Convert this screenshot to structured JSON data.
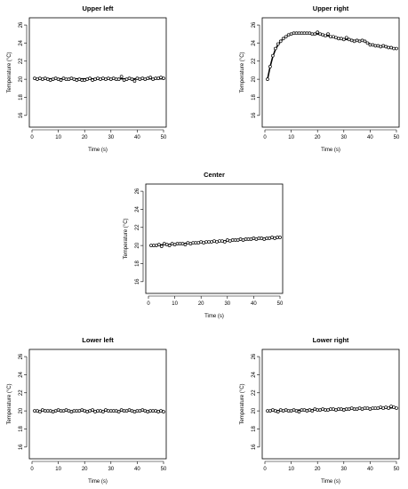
{
  "chart_data": [
    {
      "type": "scatter",
      "title": "Upper left",
      "xlabel": "Time (s)",
      "ylabel": "Temperature (°C)",
      "xlim": [
        0,
        50
      ],
      "ylim": [
        15,
        26.5
      ],
      "xticks": [
        0,
        10,
        20,
        30,
        40,
        50
      ],
      "yticks": [
        16,
        18,
        20,
        22,
        24,
        26
      ],
      "grid": false,
      "series": [
        {
          "x": [
            1,
            2,
            3,
            4,
            5,
            6,
            7,
            8,
            9,
            10,
            11,
            12,
            13,
            14,
            15,
            16,
            17,
            18,
            19,
            20,
            21,
            22,
            23,
            24,
            25,
            26,
            27,
            28,
            29,
            30,
            31,
            32,
            33,
            34,
            35,
            36,
            37,
            38,
            39,
            40,
            41,
            42,
            43,
            44,
            45,
            46,
            47,
            48,
            49,
            50
          ],
          "y": [
            20.1,
            20.0,
            20.1,
            20.0,
            20.1,
            20.0,
            19.9,
            20.0,
            20.1,
            20.0,
            19.9,
            20.1,
            20.0,
            20.0,
            20.1,
            20.0,
            19.9,
            20.0,
            19.9,
            19.9,
            20.0,
            20.1,
            19.9,
            20.0,
            20.1,
            20.0,
            20.1,
            20.0,
            20.1,
            20.0,
            20.1,
            20.0,
            20.0,
            20.3,
            19.9,
            20.0,
            20.1,
            20.0,
            19.8,
            20.1,
            20.0,
            20.1,
            20.0,
            20.1,
            20.2,
            20.0,
            20.1,
            20.1,
            20.2,
            20.1
          ],
          "fit": [
            [
              1,
              20.05
            ],
            [
              50,
              20.05
            ]
          ]
        }
      ]
    },
    {
      "type": "scatter",
      "title": "Upper right",
      "xlabel": "Time (s)",
      "ylabel": "Temperature (°C)",
      "xlim": [
        0,
        50
      ],
      "ylim": [
        15,
        26.5
      ],
      "xticks": [
        0,
        10,
        20,
        30,
        40,
        50
      ],
      "yticks": [
        16,
        18,
        20,
        22,
        24,
        26
      ],
      "grid": false,
      "series": [
        {
          "x": [
            1,
            2,
            3,
            4,
            5,
            6,
            7,
            8,
            9,
            10,
            11,
            12,
            13,
            14,
            15,
            16,
            17,
            18,
            19,
            20,
            21,
            22,
            23,
            24,
            25,
            26,
            27,
            28,
            29,
            30,
            31,
            32,
            33,
            34,
            35,
            36,
            37,
            38,
            39,
            40,
            41,
            42,
            43,
            44,
            45,
            46,
            47,
            48,
            49,
            50
          ],
          "y": [
            20.0,
            21.4,
            22.6,
            23.4,
            23.9,
            24.2,
            24.5,
            24.7,
            24.9,
            25.0,
            25.1,
            25.1,
            25.1,
            25.1,
            25.1,
            25.1,
            25.1,
            25.0,
            25.0,
            25.2,
            25.0,
            24.9,
            24.8,
            25.0,
            24.7,
            24.7,
            24.6,
            24.5,
            24.5,
            24.4,
            24.6,
            24.4,
            24.3,
            24.2,
            24.3,
            24.2,
            24.3,
            24.2,
            24.0,
            23.8,
            23.8,
            23.7,
            23.7,
            23.6,
            23.7,
            23.6,
            23.5,
            23.5,
            23.4,
            23.4
          ],
          "fit": [
            [
              1,
              20.0
            ],
            [
              2,
              21.4
            ],
            [
              3,
              22.5
            ],
            [
              4,
              23.3
            ],
            [
              5,
              23.8
            ],
            [
              6,
              24.2
            ],
            [
              7,
              24.5
            ],
            [
              8,
              24.7
            ],
            [
              9,
              24.9
            ],
            [
              10,
              25.0
            ],
            [
              12,
              25.1
            ],
            [
              14,
              25.1
            ],
            [
              16,
              25.1
            ],
            [
              18,
              25.0
            ],
            [
              20,
              25.0
            ],
            [
              22,
              24.9
            ],
            [
              24,
              24.8
            ],
            [
              26,
              24.7
            ],
            [
              28,
              24.5
            ],
            [
              30,
              24.4
            ],
            [
              32,
              24.4
            ],
            [
              34,
              24.3
            ],
            [
              36,
              24.3
            ],
            [
              38,
              24.2
            ],
            [
              40,
              23.9
            ],
            [
              42,
              23.7
            ],
            [
              44,
              23.6
            ],
            [
              46,
              23.6
            ],
            [
              48,
              23.5
            ],
            [
              50,
              23.4
            ]
          ]
        }
      ]
    },
    {
      "type": "scatter",
      "title": "Center",
      "xlabel": "Time (s)",
      "ylabel": "Temperature (°C)",
      "xlim": [
        0,
        50
      ],
      "ylim": [
        15,
        26.5
      ],
      "xticks": [
        0,
        10,
        20,
        30,
        40,
        50
      ],
      "yticks": [
        16,
        18,
        20,
        22,
        24,
        26
      ],
      "grid": false,
      "series": [
        {
          "x": [
            1,
            2,
            3,
            4,
            5,
            6,
            7,
            8,
            9,
            10,
            11,
            12,
            13,
            14,
            15,
            16,
            17,
            18,
            19,
            20,
            21,
            22,
            23,
            24,
            25,
            26,
            27,
            28,
            29,
            30,
            31,
            32,
            33,
            34,
            35,
            36,
            37,
            38,
            39,
            40,
            41,
            42,
            43,
            44,
            45,
            46,
            47,
            48,
            49,
            50
          ],
          "y": [
            20.0,
            20.0,
            20.0,
            20.1,
            19.9,
            20.2,
            20.1,
            20.0,
            20.2,
            20.1,
            20.2,
            20.2,
            20.2,
            20.1,
            20.3,
            20.2,
            20.3,
            20.3,
            20.3,
            20.4,
            20.3,
            20.4,
            20.4,
            20.4,
            20.5,
            20.4,
            20.5,
            20.5,
            20.4,
            20.6,
            20.5,
            20.6,
            20.6,
            20.6,
            20.7,
            20.6,
            20.7,
            20.7,
            20.7,
            20.8,
            20.7,
            20.8,
            20.8,
            20.7,
            20.8,
            20.8,
            20.9,
            20.8,
            20.9,
            20.9
          ],
          "fit": [
            [
              1,
              20.0
            ],
            [
              50,
              20.9
            ]
          ]
        }
      ]
    },
    {
      "type": "scatter",
      "title": "Lower left",
      "xlabel": "Time (s)",
      "ylabel": "Temperature (°C)",
      "xlim": [
        0,
        50
      ],
      "ylim": [
        15,
        26.5
      ],
      "xticks": [
        0,
        10,
        20,
        30,
        40,
        50
      ],
      "yticks": [
        16,
        18,
        20,
        22,
        24,
        26
      ],
      "grid": false,
      "series": [
        {
          "x": [
            1,
            2,
            3,
            4,
            5,
            6,
            7,
            8,
            9,
            10,
            11,
            12,
            13,
            14,
            15,
            16,
            17,
            18,
            19,
            20,
            21,
            22,
            23,
            24,
            25,
            26,
            27,
            28,
            29,
            30,
            31,
            32,
            33,
            34,
            35,
            36,
            37,
            38,
            39,
            40,
            41,
            42,
            43,
            44,
            45,
            46,
            47,
            48,
            49,
            50
          ],
          "y": [
            20.0,
            20.0,
            19.9,
            20.1,
            20.0,
            20.0,
            20.0,
            19.9,
            20.0,
            20.1,
            20.0,
            20.0,
            20.1,
            20.0,
            19.9,
            20.0,
            20.0,
            20.0,
            20.1,
            20.0,
            19.9,
            20.0,
            20.1,
            19.9,
            20.0,
            20.0,
            19.9,
            20.1,
            20.0,
            20.0,
            20.0,
            20.0,
            19.9,
            20.1,
            20.0,
            20.0,
            20.1,
            20.0,
            19.9,
            20.0,
            20.0,
            20.1,
            20.0,
            19.9,
            20.0,
            20.0,
            20.0,
            19.9,
            20.0,
            19.9
          ],
          "fit": [
            [
              1,
              20.0
            ],
            [
              50,
              20.0
            ]
          ]
        }
      ]
    },
    {
      "type": "scatter",
      "title": "Lower right",
      "xlabel": "Time (s)",
      "ylabel": "Temperature (°C)",
      "xlim": [
        0,
        50
      ],
      "ylim": [
        15,
        26.5
      ],
      "xticks": [
        0,
        10,
        20,
        30,
        40,
        50
      ],
      "yticks": [
        16,
        18,
        20,
        22,
        24,
        26
      ],
      "grid": false,
      "series": [
        {
          "x": [
            1,
            2,
            3,
            4,
            5,
            6,
            7,
            8,
            9,
            10,
            11,
            12,
            13,
            14,
            15,
            16,
            17,
            18,
            19,
            20,
            21,
            22,
            23,
            24,
            25,
            26,
            27,
            28,
            29,
            30,
            31,
            32,
            33,
            34,
            35,
            36,
            37,
            38,
            39,
            40,
            41,
            42,
            43,
            44,
            45,
            46,
            47,
            48,
            49,
            50
          ],
          "y": [
            20.0,
            20.0,
            20.1,
            20.0,
            19.9,
            20.1,
            20.0,
            20.1,
            20.0,
            20.0,
            20.1,
            20.0,
            19.9,
            20.1,
            20.1,
            20.0,
            20.1,
            20.0,
            20.2,
            20.1,
            20.1,
            20.2,
            20.1,
            20.1,
            20.2,
            20.2,
            20.1,
            20.2,
            20.2,
            20.1,
            20.2,
            20.2,
            20.3,
            20.2,
            20.2,
            20.3,
            20.2,
            20.3,
            20.3,
            20.2,
            20.3,
            20.3,
            20.3,
            20.4,
            20.3,
            20.4,
            20.3,
            20.5,
            20.4,
            20.3
          ],
          "fit": [
            [
              1,
              20.0
            ],
            [
              50,
              20.35
            ]
          ]
        }
      ]
    }
  ]
}
